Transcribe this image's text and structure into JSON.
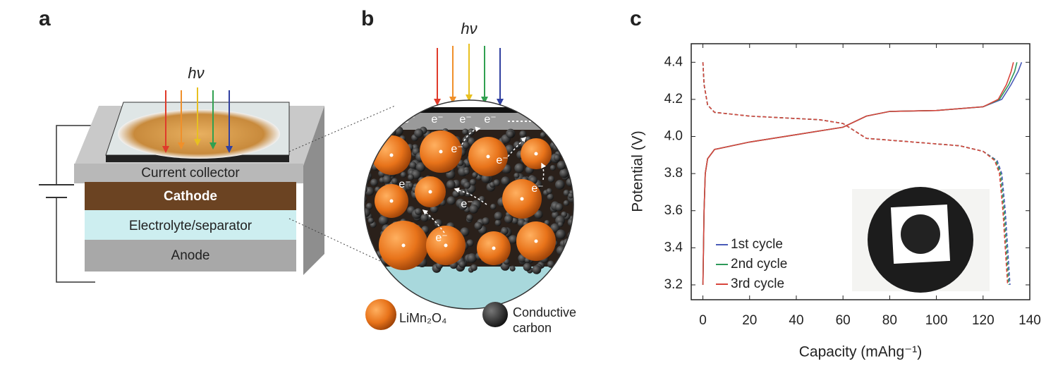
{
  "panel_a": {
    "label": "a",
    "light": "hν",
    "layers": [
      "Current collector",
      "Cathode",
      "Electrolyte/separator",
      "Anode"
    ]
  },
  "panel_b": {
    "label": "b",
    "light": "hν",
    "electron": "e⁻",
    "legend": [
      {
        "name": "LiMn₂O₄"
      },
      {
        "name": [
          "Conductive",
          "carbon"
        ]
      }
    ]
  },
  "chart_data": {
    "type": "line",
    "panel_label": "c",
    "x_label": "Capacity (mAhg⁻¹)",
    "y_label": "Potential (V)",
    "xlim": [
      -5,
      140
    ],
    "ylim": [
      3.12,
      4.5
    ],
    "xticks": [
      0,
      20,
      40,
      60,
      80,
      100,
      120,
      140
    ],
    "yticks": [
      3.2,
      3.4,
      3.6,
      3.8,
      {
        "value": 4,
        "label": "4.0"
      },
      4.2,
      4.4
    ],
    "series": [
      {
        "name": "1st cycle",
        "color": "#4a5bb8",
        "x": [
          0,
          0.5,
          1,
          2,
          5,
          20,
          40,
          60,
          70,
          80,
          100,
          120,
          128,
          132,
          135,
          136.5
        ],
        "values": [
          3.2,
          3.6,
          3.8,
          3.88,
          3.93,
          3.97,
          4.01,
          4.05,
          4.11,
          4.135,
          4.14,
          4.16,
          4.2,
          4.28,
          4.35,
          4.4
        ],
        "discharge_x": [
          0,
          0.5,
          2,
          5,
          20,
          50,
          60,
          65,
          70,
          90,
          110,
          120,
          126,
          128,
          129.5,
          130.5,
          131.5
        ],
        "discharge_values": [
          4.4,
          4.28,
          4.17,
          4.13,
          4.11,
          4.09,
          4.07,
          4.03,
          3.99,
          3.97,
          3.95,
          3.92,
          3.87,
          3.8,
          3.6,
          3.4,
          3.2
        ]
      },
      {
        "name": "2nd cycle",
        "color": "#2e9a5a",
        "x": [
          0,
          0.5,
          1,
          2,
          5,
          20,
          40,
          60,
          70,
          80,
          100,
          120,
          127,
          131,
          133.5,
          134.5
        ],
        "values": [
          3.2,
          3.6,
          3.8,
          3.88,
          3.93,
          3.97,
          4.01,
          4.05,
          4.11,
          4.135,
          4.14,
          4.16,
          4.2,
          4.28,
          4.35,
          4.4
        ],
        "discharge_x": [
          0,
          0.5,
          2,
          5,
          20,
          50,
          60,
          65,
          70,
          90,
          110,
          120,
          125.5,
          127.5,
          129,
          130,
          131
        ],
        "discharge_values": [
          4.4,
          4.28,
          4.17,
          4.13,
          4.11,
          4.09,
          4.07,
          4.03,
          3.99,
          3.97,
          3.95,
          3.92,
          3.87,
          3.8,
          3.6,
          3.4,
          3.2
        ]
      },
      {
        "name": "3rd cycle",
        "color": "#d8453c",
        "x": [
          0,
          0.5,
          1,
          2,
          5,
          20,
          40,
          60,
          70,
          80,
          100,
          120,
          126.5,
          130,
          132,
          133
        ],
        "values": [
          3.2,
          3.6,
          3.8,
          3.88,
          3.93,
          3.97,
          4.01,
          4.05,
          4.11,
          4.135,
          4.14,
          4.16,
          4.2,
          4.28,
          4.35,
          4.4
        ],
        "discharge_x": [
          0,
          0.5,
          2,
          5,
          20,
          50,
          60,
          65,
          70,
          90,
          110,
          120,
          125,
          127,
          128.5,
          129.5,
          130.5
        ],
        "discharge_values": [
          4.4,
          4.28,
          4.17,
          4.13,
          4.11,
          4.09,
          4.07,
          4.03,
          3.99,
          3.97,
          3.95,
          3.92,
          3.87,
          3.8,
          3.6,
          3.4,
          3.2
        ]
      }
    ]
  }
}
